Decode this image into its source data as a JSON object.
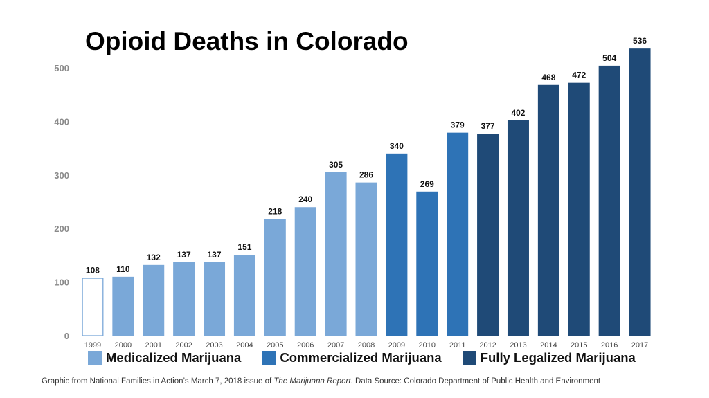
{
  "chart_data": {
    "type": "bar",
    "title": "Opioid Deaths in Colorado",
    "categories": [
      "1999",
      "2000",
      "2001",
      "2002",
      "2003",
      "2004",
      "2005",
      "2006",
      "2007",
      "2008",
      "2009",
      "2010",
      "2011",
      "2012",
      "2013",
      "2014",
      "2015",
      "2016",
      "2017"
    ],
    "values": [
      108,
      110,
      132,
      137,
      137,
      151,
      218,
      240,
      305,
      286,
      340,
      269,
      379,
      377,
      402,
      468,
      472,
      504,
      536
    ],
    "groups": [
      "none",
      "medicalized",
      "medicalized",
      "medicalized",
      "medicalized",
      "medicalized",
      "medicalized",
      "medicalized",
      "medicalized",
      "medicalized",
      "commercialized",
      "commercialized",
      "commercialized",
      "legalized",
      "legalized",
      "legalized",
      "legalized",
      "legalized",
      "legalized"
    ],
    "ylim": [
      0,
      540
    ],
    "yticks": [
      0,
      100,
      200,
      300,
      400,
      500
    ],
    "grid": false,
    "legend_position": "bottom",
    "legend": [
      {
        "key": "medicalized",
        "label": "Medicalized Marijuana",
        "color": "#7aa8d8"
      },
      {
        "key": "commercialized",
        "label": "Commercialized Marijuana",
        "color": "#2e73b6"
      },
      {
        "key": "legalized",
        "label": "Fully Legalized Marijuana",
        "color": "#1f4a77"
      }
    ],
    "colors": {
      "none": "#ffffff",
      "outline": "#7aa8d8",
      "axis": "#d9d9d9"
    }
  },
  "footnote": {
    "before": "Graphic from National Families in Action’s March 7, 2018 issue of ",
    "italic": "The Marijuana Report",
    "after": ". Data Source: Colorado Department of Public Health and Environment"
  }
}
